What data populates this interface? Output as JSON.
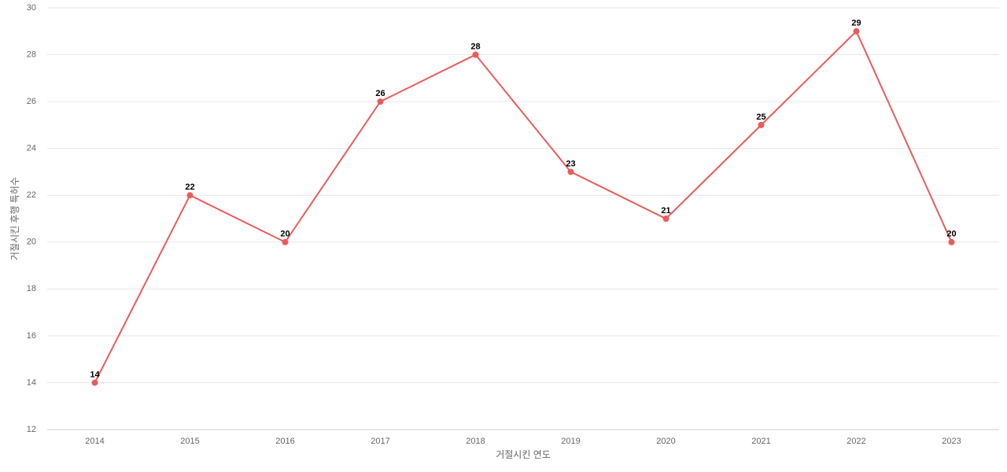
{
  "chart_data": {
    "type": "line",
    "x_label": "거절시킨 연도",
    "y_label": "거절시킨 후행 특허수",
    "categories": [
      "2014",
      "2015",
      "2016",
      "2017",
      "2018",
      "2019",
      "2020",
      "2021",
      "2022",
      "2023"
    ],
    "values": [
      14,
      22,
      20,
      26,
      28,
      23,
      21,
      25,
      29,
      20
    ],
    "color": "#ea5b5b",
    "ylim": [
      12,
      30
    ],
    "yticks": [
      12,
      14,
      16,
      18,
      20,
      22,
      24,
      26,
      28,
      30
    ],
    "grid": true
  }
}
